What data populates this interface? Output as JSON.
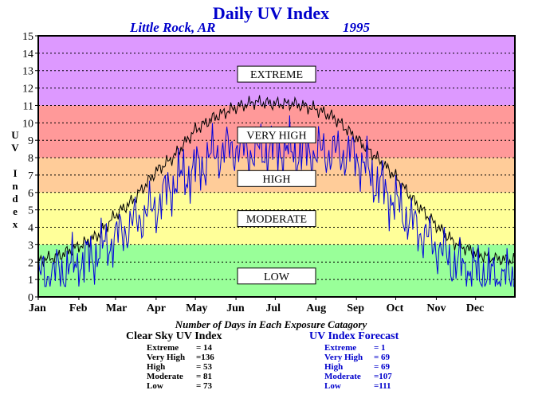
{
  "header": {
    "title": "Daily UV Index",
    "location": "Little Rock, AR",
    "year": "1995"
  },
  "chart_data": {
    "type": "line",
    "ylabel": "UV Index",
    "ylim": [
      0,
      15
    ],
    "yticks": [
      0,
      1,
      2,
      3,
      4,
      5,
      6,
      7,
      8,
      9,
      10,
      11,
      12,
      13,
      14,
      15
    ],
    "months": [
      "Jan",
      "Feb",
      "Mar",
      "Apr",
      "May",
      "Jun",
      "Jul",
      "Aug",
      "Sep",
      "Oct",
      "Nov",
      "Dec"
    ],
    "grid": "dotted horizontal",
    "bands": [
      {
        "label": "LOW",
        "from": 0,
        "to": 3,
        "color": "#99ff99",
        "label_y": 1.2
      },
      {
        "label": "MODERATE",
        "from": 3,
        "to": 6,
        "color": "#ffff99",
        "label_y": 4.5
      },
      {
        "label": "HIGH",
        "from": 6,
        "to": 8,
        "color": "#ffcc99",
        "label_y": 6.8
      },
      {
        "label": "VERY HIGH",
        "from": 8,
        "to": 11,
        "color": "#ff9999",
        "label_y": 9.3
      },
      {
        "label": "EXTREME",
        "from": 11,
        "to": 15,
        "color": "#dd99ff",
        "label_y": 12.8
      }
    ],
    "series": [
      {
        "key": "clear_sky",
        "color": "#000000"
      },
      {
        "key": "forecast",
        "color": "#0000dd"
      }
    ],
    "x_days": [
      1,
      15,
      32,
      46,
      60,
      74,
      91,
      105,
      121,
      135,
      152,
      166,
      182,
      196,
      213,
      227,
      244,
      258,
      274,
      288,
      305,
      319,
      335,
      349,
      365
    ],
    "clear_sky": [
      2.1,
      2.3,
      2.9,
      3.5,
      4.7,
      5.6,
      7.2,
      8.1,
      9.6,
      10.3,
      10.9,
      11.2,
      11.1,
      11.1,
      10.8,
      10.3,
      9.1,
      8.1,
      6.9,
      5.5,
      4.1,
      3.1,
      2.5,
      2.2,
      2.1
    ],
    "forecast": [
      1.2,
      1.4,
      1.9,
      2.5,
      3.4,
      4.3,
      5.2,
      6.6,
      7.3,
      8.2,
      8.6,
      8.3,
      8.6,
      8.3,
      8.3,
      8.3,
      8.1,
      6.7,
      5.4,
      4.1,
      2.9,
      1.9,
      1.4,
      1.1,
      1.1
    ]
  },
  "counts": {
    "heading": "Number of Days in Each Exposure Catagory",
    "clear_sky": {
      "title": "Clear Sky UV Index",
      "rows": [
        {
          "label": "Extreme",
          "value": "= 14"
        },
        {
          "label": "Very High",
          "value": "=136"
        },
        {
          "label": "High",
          "value": "= 53"
        },
        {
          "label": "Moderate",
          "value": "= 81"
        },
        {
          "label": "Low",
          "value": "= 73"
        }
      ]
    },
    "forecast": {
      "title": "UV Index Forecast",
      "rows": [
        {
          "label": "Extreme",
          "value": "= 1"
        },
        {
          "label": "Very High",
          "value": "= 69"
        },
        {
          "label": "High",
          "value": "= 69"
        },
        {
          "label": "Moderate",
          "value": "=107"
        },
        {
          "label": "Low",
          "value": "=111"
        }
      ]
    }
  }
}
